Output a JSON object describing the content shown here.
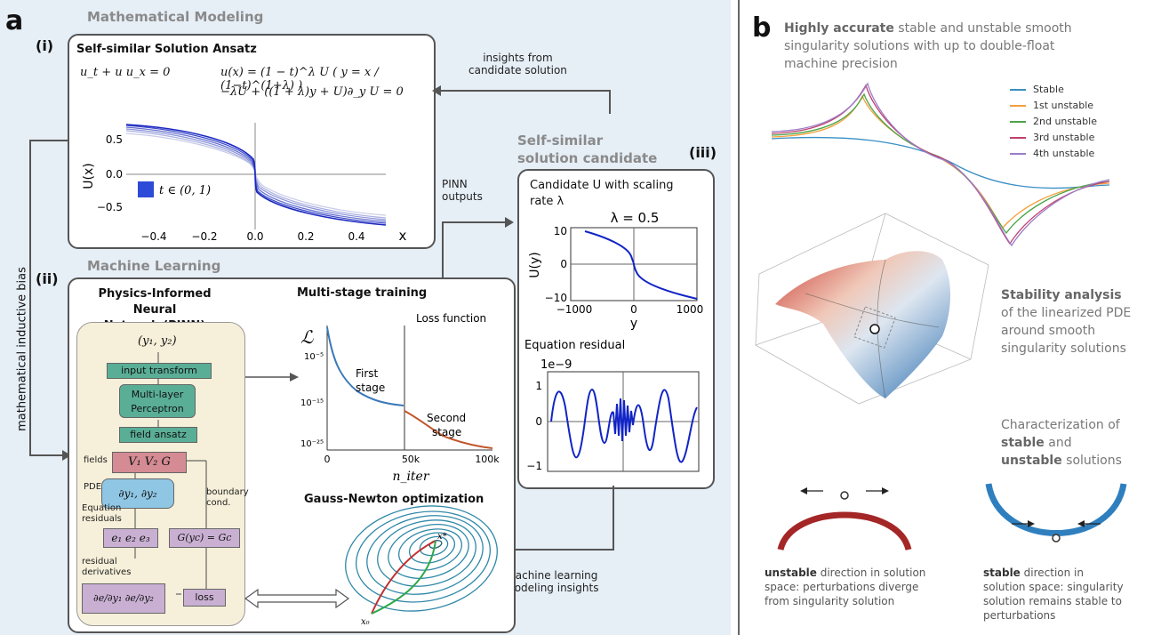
{
  "panel_a": {
    "letter": "a",
    "modeling_title": "Mathematical Modeling",
    "ml_title": "Machine Learning",
    "roman_i": "(i)",
    "roman_ii": "(ii)",
    "roman_iii": "(iii)",
    "ansatz": {
      "title": "Self-similar Solution Ansatz",
      "eq_left": "u_t + u u_x = 0",
      "eq_right_1": "u(x) = (1 − t)^λ U ( y = x / (1−t)^(1+λ) )",
      "eq_right_2": "−λU + ((1 + λ)y + U)∂_y U = 0",
      "ylabel": "U(x)",
      "xlabel": "x",
      "legend": "t ∈ (0, 1)",
      "xticks": [
        "−0.4",
        "−0.2",
        "0.0",
        "0.2",
        "0.4"
      ],
      "yticks": [
        "0.5",
        "0.0",
        "−0.5"
      ]
    },
    "insights_label_1": "insights from",
    "insights_label_2": "candidate solution",
    "pinn_outputs_1": "PINN",
    "pinn_outputs_2": "outputs",
    "inductive_bias": "mathematical inductive bias",
    "candidate_title_1": "Self-similar",
    "candidate_title_2": "solution candidate",
    "candidate": {
      "title_1": "Candidate U with scaling",
      "title_2": "rate λ",
      "lambda_label": "λ = 0.5",
      "ylabel": "U(y)",
      "xlabel": "y",
      "xticks": [
        "−1000",
        "0",
        "1000"
      ],
      "yticks": [
        "10",
        "0",
        "−10"
      ],
      "residual_title": "Equation residual",
      "residual_scale": "1e−9",
      "residual_yticks": [
        "1",
        "0",
        "−1"
      ]
    },
    "pinn": {
      "title_1": "Physics-Informed Neural",
      "title_2": "Network (PINN)",
      "inputs": "(y₁, y₂)",
      "input_transform": "input transform",
      "mlp_1": "Multi-layer",
      "mlp_2": "Perceptron",
      "field_ansatz": "field ansatz",
      "fields_label": "fields",
      "fields_node": "V₁ V₂ G",
      "pde_label": "PDE",
      "pde_node": "∂y₁, ∂y₂",
      "eq_res_1": "Equation",
      "eq_res_2": "residuals",
      "boundary_1": "boundary",
      "boundary_2": "cond.",
      "residual_node": "e₁ e₂ e₃",
      "boundary_node": "G(yc) = Gc",
      "res_deriv_1": "residual",
      "res_deriv_2": "derivatives",
      "deriv_node": "∂e/∂y₁  ∂e/∂y₂",
      "loss_node": "loss"
    },
    "training": {
      "title": "Multi-stage training",
      "loss_label": "Loss function",
      "ylabel": "ℒ",
      "yticks": [
        "10⁻⁵",
        "10⁻¹⁵",
        "10⁻²⁵"
      ],
      "xticks": [
        "0",
        "50k",
        "100k"
      ],
      "xlabel": "n_iter",
      "first_stage_1": "First",
      "first_stage_2": "stage",
      "second_stage_1": "Second",
      "second_stage_2": "stage"
    },
    "gauss_newton": {
      "title": "Gauss-Newton optimization",
      "x_star": "x*",
      "x_zero": "x₀"
    },
    "ml_insights_1": "machine learning",
    "ml_insights_2": "modeling insights"
  },
  "panel_b": {
    "letter": "b",
    "accurate_bold": "Highly accurate",
    "accurate_rest_1": " stable and unstable smooth",
    "accurate_rest_2": "singularity solutions with up to double-float",
    "accurate_rest_3": "machine precision",
    "legend": [
      "Stable",
      "1st unstable",
      "2nd unstable",
      "3rd unstable",
      "4th unstable"
    ],
    "legend_colors": [
      "#3a8fc4",
      "#f5a03c",
      "#4aa548",
      "#c0406e",
      "#9b7cc8"
    ],
    "stability_bold": "Stability analysis",
    "stability_rest_1": "of the linearized PDE",
    "stability_rest_2": "around smooth",
    "stability_rest_3": "singularity solutions",
    "char_1": "Characterization of",
    "char_stable": "stable",
    "char_and": " and",
    "char_unstable": "unstable",
    "char_solutions": " solutions",
    "unstable_bold": "unstable",
    "unstable_rest_1": " direction in solution",
    "unstable_rest_2": "space: perturbations diverge",
    "unstable_rest_3": "from singularity solution",
    "stable_bold": "stable",
    "stable_rest_1": " direction in",
    "stable_rest_2": "solution space: singularity",
    "stable_rest_3": "solution remains stable to",
    "stable_rest_4": "perturbations"
  }
}
